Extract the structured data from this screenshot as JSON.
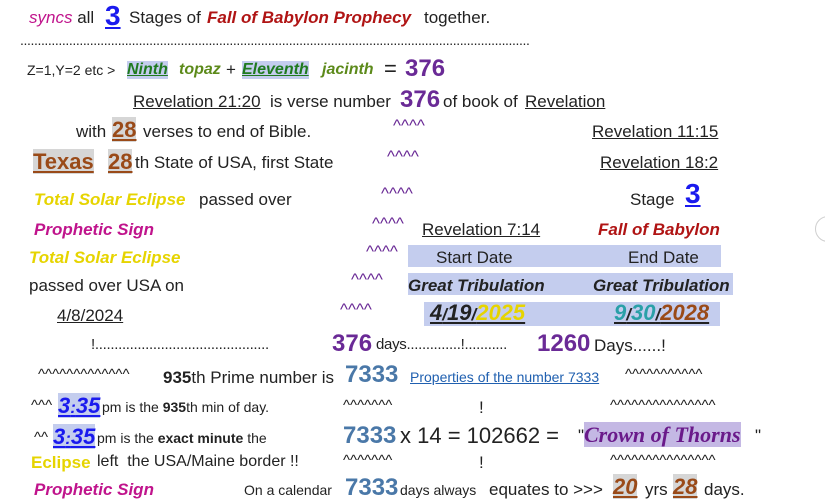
{
  "row1": {
    "syncs": "syncs",
    "all": "all",
    "num": "3",
    "stages": "Stages of",
    "fall": "Fall of Babylon Prophecy",
    "together": "together."
  },
  "dots": "..................................................................................................................................................",
  "row2": {
    "prefix": "Z=1,Y=2 etc >",
    "ninth": "Ninth",
    "topaz": "topaz",
    "plus": "+",
    "eleventh": "Eleventh",
    "jacinth": "jacinth",
    "eq": "=",
    "num": "376"
  },
  "row3": {
    "ref": "Revelation 21:20",
    "text1": "is verse number",
    "num": "376",
    "text2": "of book of",
    "book": "Revelation"
  },
  "row4": {
    "with": "with",
    "num": "28",
    "rest": "verses to end of Bible.",
    "carets": "^^^^",
    "ref": "Revelation 11:15"
  },
  "row5": {
    "texas": "Texas",
    "num": "28",
    "rest": "th State of USA, first State",
    "carets": "^^^^",
    "ref": "Revelation 18:2"
  },
  "row6": {
    "tse": "Total Solar Eclipse",
    "passed": "passed over",
    "carets": "^^^^",
    "stage": "Stage",
    "num": "3"
  },
  "row7": {
    "sign": "Prophetic Sign",
    "carets": "^^^^",
    "ref": "Revelation 7:14",
    "fall": "Fall of Babylon"
  },
  "row8": {
    "tse": "Total Solar Eclipse",
    "carets": "^^^^",
    "start": "Start Date",
    "end": "End Date"
  },
  "row9": {
    "passed": "passed over USA on",
    "carets": "^^^^",
    "gt1": "Great Tribulation",
    "gt2": "Great Tribulation"
  },
  "row10": {
    "date": "4/8/2024",
    "carets": "^^^^",
    "d1m": "4",
    "d1s1": "/",
    "d1d": "19",
    "d1s2": "/",
    "d1y": "2025",
    "d2m": "9",
    "d2s1": "/",
    "d2d": "30",
    "d2s2": "/",
    "d2y": "2028"
  },
  "row11": {
    "left": "!.............................................",
    "num": "376",
    "days": "days..............!...........",
    "num2": "1260",
    "tail": "Days......!"
  },
  "row12": {
    "carets1": "^^^^^^^^^^^^^",
    "prime_num": "935",
    "prime_text": "th Prime number is",
    "num": "7333",
    "link": "Properties of the number 7333",
    "carets2": "^^^^^^^^^^^"
  },
  "row13": {
    "carets1": "^^^",
    "h": "3",
    "colon": ":",
    "m": "35",
    "pm": "pm is the",
    "n": "935",
    "rest": "th min of day.",
    "carets2": "^^^^^^^",
    "bang": "!",
    "carets3": "^^^^^^^^^^^^^^^"
  },
  "row14": {
    "carets1": "^^",
    "h": "3",
    "colon": ":",
    "m": "35",
    "pm": "pm is the",
    "exact": "exact minute",
    "the": "the",
    "eq_num": "7333",
    "eq_mid": "x 14 = 102662 =",
    "q1": "\"",
    "crown": "Crown of Thorns",
    "q2": "\""
  },
  "row15": {
    "eclipse": "Eclipse",
    "rest": "left  the USA/Maine border !!",
    "carets2": "^^^^^^^",
    "bang": "!",
    "carets3": "^^^^^^^^^^^^^^^"
  },
  "row16": {
    "sign": "Prophetic Sign",
    "cal": "On a calendar",
    "num": "7333",
    "days": "days always",
    "eq": "equates to >>>",
    "yrs_num": "20",
    "yrs": "yrs",
    "days_num": "28",
    "end": "days."
  }
}
